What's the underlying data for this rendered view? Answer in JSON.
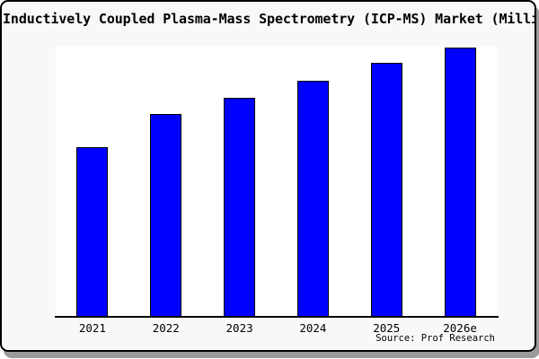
{
  "window": {
    "frame_bg": "#f8f8f8",
    "frame_border": "#000000",
    "shadow": "#9a9a9a",
    "plot_bg": "#ffffff",
    "text_color": "#000000"
  },
  "chart_data": {
    "type": "bar",
    "title": "Inductively Coupled Plasma-Mass Spectrometry (ICP-MS) Market (Milli",
    "title_clipped_at_right_edge": true,
    "categories": [
      "2021",
      "2022",
      "2023",
      "2024",
      "2025",
      "2026e"
    ],
    "values": [
      189,
      226,
      244,
      263,
      283,
      300
    ],
    "values_note": "relative bar heights; no y-axis, gridlines or value labels are shown",
    "values_indexed_2021_100": [
      100,
      120,
      129,
      139,
      150,
      159
    ],
    "ylim": [
      0,
      301
    ],
    "xlabel": "",
    "ylabel": "",
    "legend": "none",
    "gridlines": false,
    "y_axis_visible": false,
    "bar_fill": "#0000ff",
    "bar_border": "#000000",
    "source": "Source: Prof Research"
  }
}
